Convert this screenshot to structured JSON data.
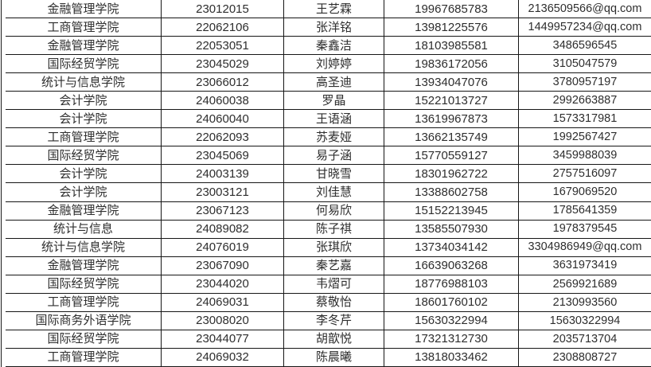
{
  "colors": {
    "background": "#ffffff",
    "gridline": "#161616",
    "text": "#2e2e2e"
  },
  "table": {
    "columns": [
      "college",
      "student_id",
      "name",
      "phone",
      "contact"
    ],
    "rows": [
      [
        "金融管理学院",
        "23012015",
        "王艺霖",
        "19967685783",
        "2136509566@qq.com"
      ],
      [
        "工商管理学院",
        "22062106",
        "张洋铭",
        "13981225576",
        "1449957234@qq.com"
      ],
      [
        "金融管理学院",
        "22053051",
        "秦鑫洁",
        "18103985581",
        "3486596545"
      ],
      [
        "国际经贸学院",
        "23045029",
        "刘婷婷",
        "19836172056",
        "3105047579"
      ],
      [
        "统计与信息学院",
        "23066012",
        "高圣迪",
        "13934047076",
        "3780957197"
      ],
      [
        "会计学院",
        "24060038",
        "罗晶",
        "15221013727",
        "2992663887"
      ],
      [
        "会计学院",
        "24060040",
        "王语涵",
        "13619967873",
        "1573317981"
      ],
      [
        "工商管理学院",
        "22062093",
        "苏麦娅",
        "13662135749",
        "1992567427"
      ],
      [
        "国际经贸学院",
        "23045069",
        "易子涵",
        "15770559127",
        "3459988039"
      ],
      [
        "会计学院",
        "24003139",
        "甘晓雪",
        "18301962722",
        "2757516097"
      ],
      [
        "会计学院",
        "23003121",
        "刘佳慧",
        "13388602758",
        "1679069520"
      ],
      [
        "金融管理学院",
        "23067123",
        "何易欣",
        "15152213945",
        "1785641359"
      ],
      [
        "统计与信息",
        "24089082",
        "陈子祺",
        "13585507930",
        "1978379545"
      ],
      [
        "统计与信息学院",
        "24076019",
        "张琪欣",
        "13734034142",
        "3304986949@qq.com"
      ],
      [
        "金融管理学院",
        "23067090",
        "秦艺嘉",
        "16639063268",
        "3631973419"
      ],
      [
        "国际经贸学院",
        "23044020",
        "韦熠可",
        "18776988103",
        "2569921689"
      ],
      [
        "工商管理学院",
        "24069031",
        "蔡敬怡",
        "18601760102",
        "2130993560"
      ],
      [
        "国际商务外语学院",
        "23008020",
        "李冬芹",
        "15630322994",
        "15630322994"
      ],
      [
        "国际经贸学院",
        "23044077",
        "胡歆悦",
        "17321312730",
        "2035713704"
      ],
      [
        "工商管理学院",
        "24069032",
        "陈晨曦",
        "13818033462",
        "2308808727"
      ]
    ]
  }
}
